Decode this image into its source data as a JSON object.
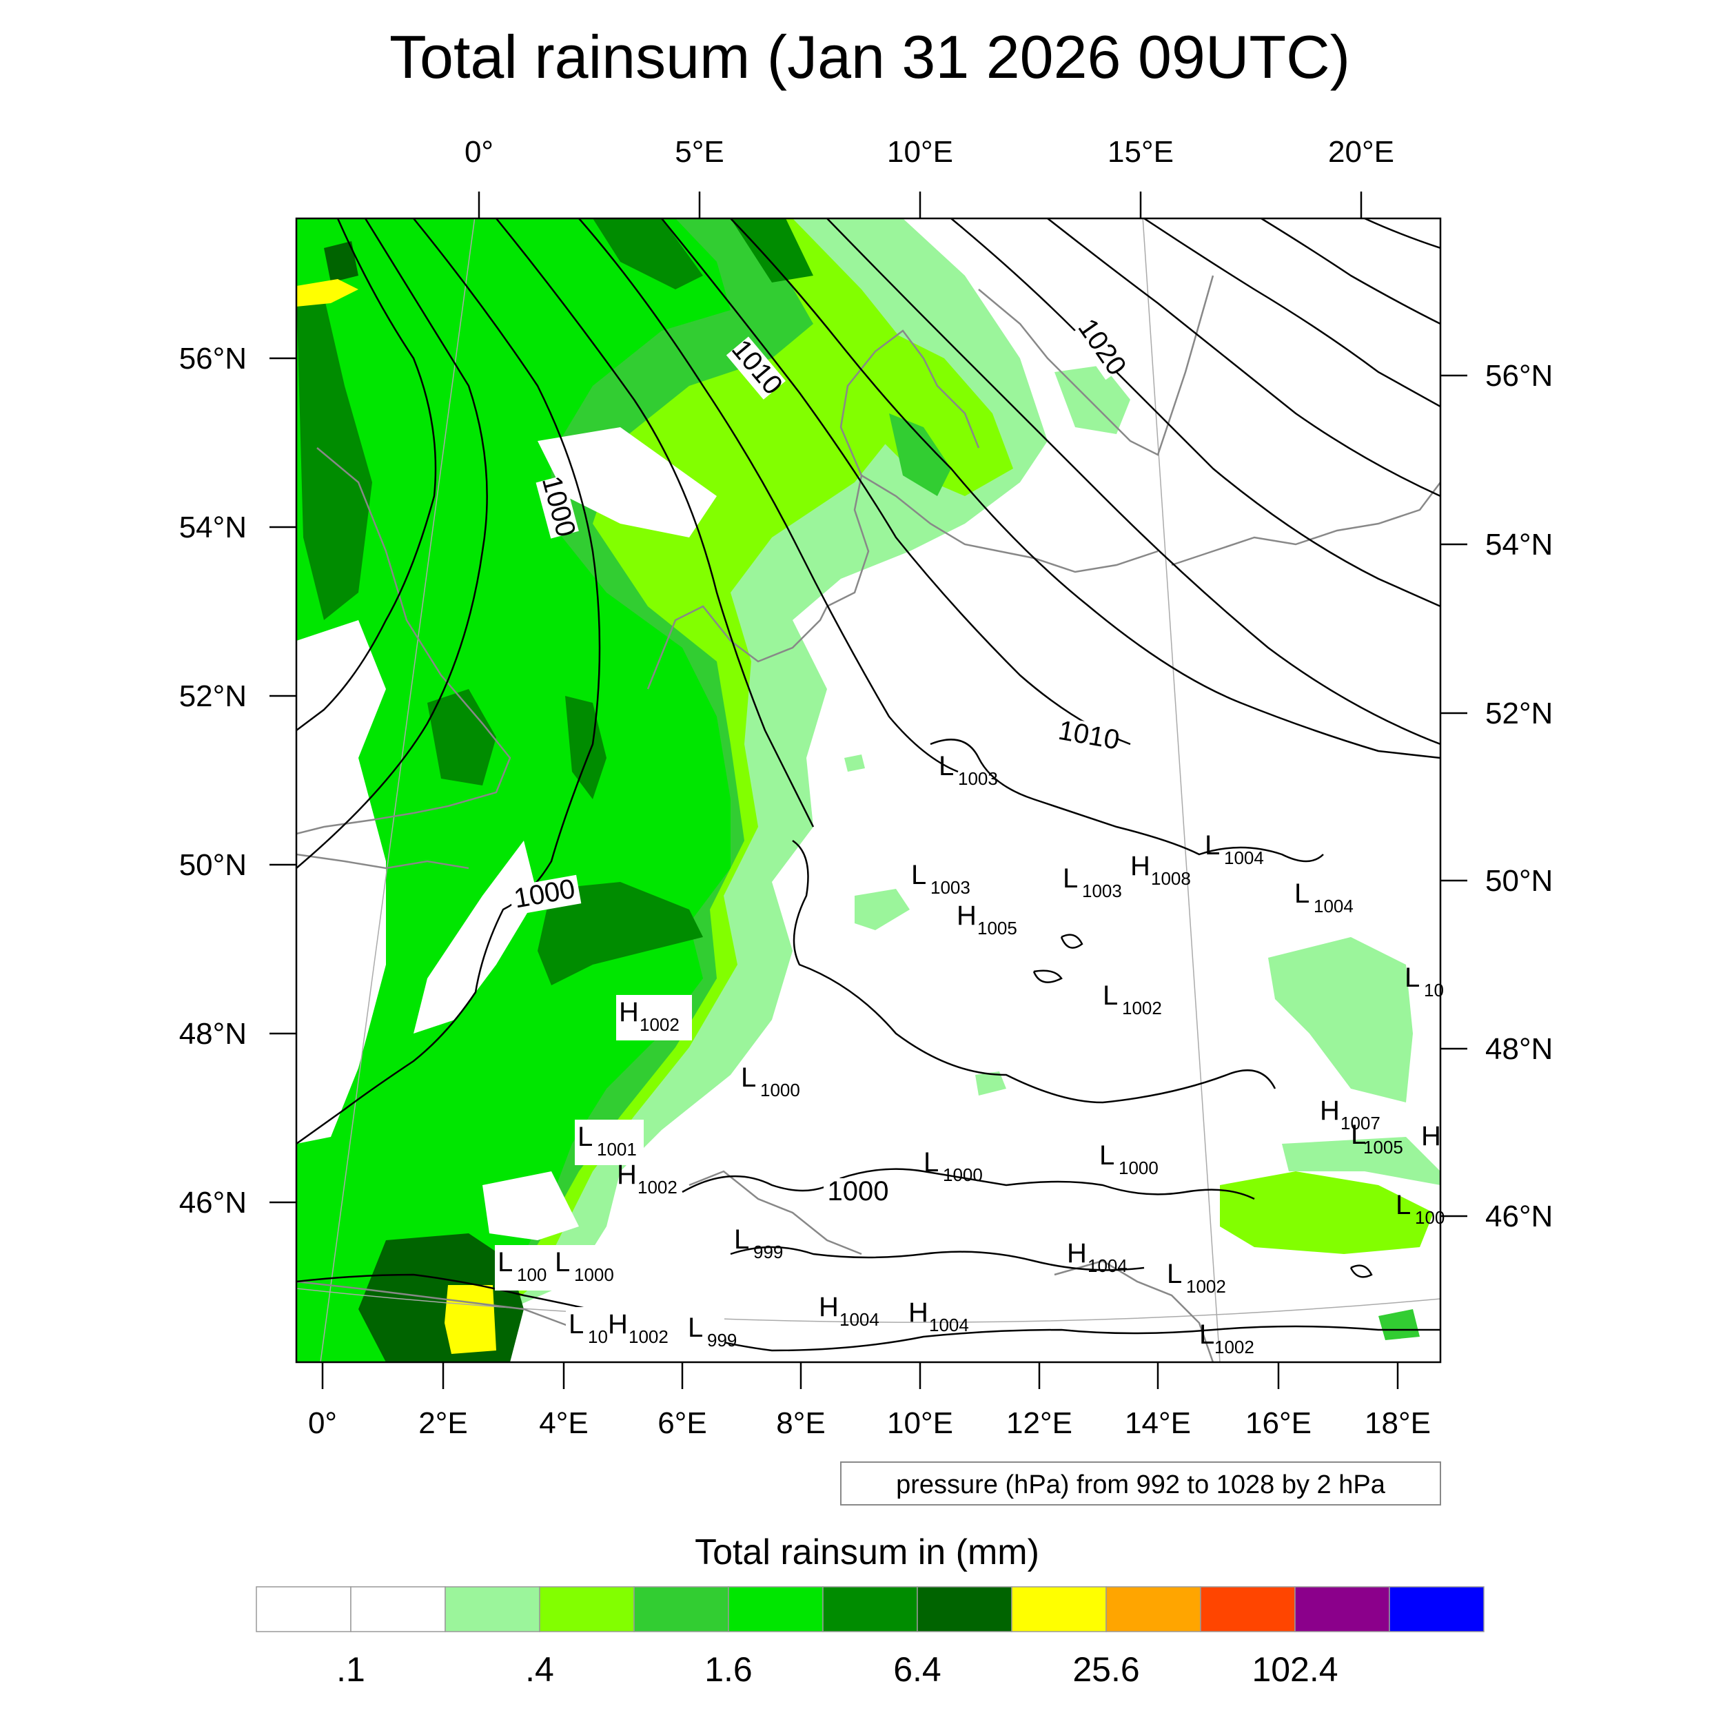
{
  "title": "Total rainsum (Jan 31 2026 09UTC)",
  "top_ticks": [
    "0°",
    "5°E",
    "10°E",
    "15°E",
    "20°E"
  ],
  "bottom_ticks": [
    "0°",
    "2°E",
    "4°E",
    "6°E",
    "8°E",
    "10°E",
    "12°E",
    "14°E",
    "16°E",
    "18°E"
  ],
  "left_ticks": [
    "56°N",
    "54°N",
    "52°N",
    "50°N",
    "48°N",
    "46°N"
  ],
  "right_ticks": [
    "56°N",
    "54°N",
    "52°N",
    "50°N",
    "48°N",
    "46°N"
  ],
  "contour_labels": [
    "1020",
    "1010",
    "1010",
    "1000",
    "1000",
    "1000"
  ],
  "pressure_centers": [
    {
      "letter": "L",
      "value": "1003"
    },
    {
      "letter": "L",
      "value": "1003"
    },
    {
      "letter": "H",
      "value": "1005"
    },
    {
      "letter": "L",
      "value": "1003"
    },
    {
      "letter": "H",
      "value": "1008"
    },
    {
      "letter": "L",
      "value": "1004"
    },
    {
      "letter": "L",
      "value": "1004"
    },
    {
      "letter": "L",
      "value": "10"
    },
    {
      "letter": "L",
      "value": "1002"
    },
    {
      "letter": "H",
      "value": "1002"
    },
    {
      "letter": "L",
      "value": "1000"
    },
    {
      "letter": "H",
      "value": "1007"
    },
    {
      "letter": "L",
      "value": "1005"
    },
    {
      "letter": "H",
      "value": ""
    },
    {
      "letter": "L",
      "value": "1001"
    },
    {
      "letter": "H",
      "value": "1002"
    },
    {
      "letter": "L",
      "value": "1000"
    },
    {
      "letter": "L",
      "value": "1000"
    },
    {
      "letter": "L",
      "value": "100"
    },
    {
      "letter": "L",
      "value": "999"
    },
    {
      "letter": "H",
      "value": "1004"
    },
    {
      "letter": "L",
      "value": "1002"
    },
    {
      "letter": "L",
      "value": "100"
    },
    {
      "letter": "L",
      "value": "1000"
    },
    {
      "letter": "L",
      "value": "10"
    },
    {
      "letter": "H",
      "value": "1002"
    },
    {
      "letter": "L",
      "value": "999"
    },
    {
      "letter": "H",
      "value": "1004"
    },
    {
      "letter": "H",
      "value": "1004"
    },
    {
      "letter": "L",
      "value": "1002"
    }
  ],
  "contour_info": "pressure (hPa) from 992 to 1028 by 2 hPa",
  "legend": {
    "title": "Total rainsum in (mm)",
    "colors": [
      "#ffffff",
      "#ffffff",
      "#9bf59b",
      "#82ff00",
      "#32cd32",
      "#00e600",
      "#008c00",
      "#006400",
      "#ffff00",
      "#ffa500",
      "#ff4500",
      "#8b008b",
      "#0000ff"
    ],
    "labels": [
      ".1",
      ".4",
      "1.6",
      "6.4",
      "25.6",
      "102.4"
    ]
  }
}
